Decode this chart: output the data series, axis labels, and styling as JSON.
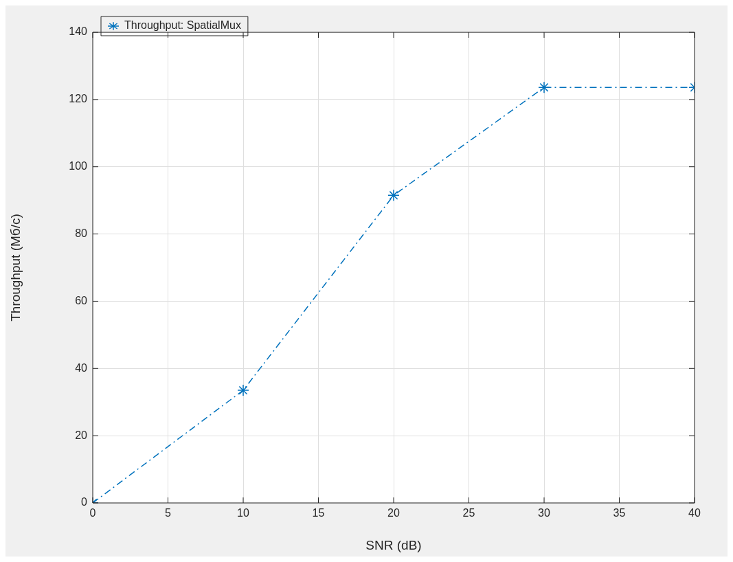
{
  "chart_data": {
    "type": "line",
    "xlabel": "SNR (dB)",
    "ylabel": "Throughput (Мб/с)",
    "x": [
      0,
      10,
      20,
      30,
      40
    ],
    "series": [
      {
        "name": "Throughput: SpatialMux",
        "color": "#0072bd",
        "values": [
          0,
          33.5,
          91.5,
          123.6,
          123.6
        ]
      }
    ],
    "xlim": [
      0,
      40
    ],
    "xticks": [
      0,
      5,
      10,
      15,
      20,
      25,
      30,
      35,
      40
    ],
    "ylim": [
      0,
      140
    ],
    "yticks": [
      0,
      20,
      40,
      60,
      80,
      100,
      120,
      140
    ],
    "grid": true,
    "legend": "top left",
    "marker": "cross",
    "line_style": "dashed"
  }
}
